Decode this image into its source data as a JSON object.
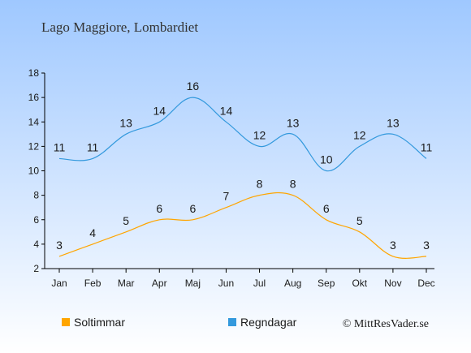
{
  "chart_data": {
    "type": "line",
    "title": "Lago Maggiore, Lombardiet",
    "categories": [
      "Jan",
      "Feb",
      "Mar",
      "Apr",
      "Maj",
      "Jun",
      "Jul",
      "Aug",
      "Sep",
      "Okt",
      "Nov",
      "Dec"
    ],
    "series": [
      {
        "name": "Soltimmar",
        "values": [
          3,
          4,
          5,
          6,
          6,
          7,
          8,
          8,
          6,
          5,
          3,
          3
        ],
        "color": "#ffa500"
      },
      {
        "name": "Regndagar",
        "values": [
          11,
          11,
          13,
          14,
          16,
          14,
          12,
          13,
          10,
          12,
          13,
          11
        ],
        "color": "#3399dd"
      }
    ],
    "yticks": [
      2,
      4,
      6,
      8,
      10,
      12,
      14,
      16,
      18
    ],
    "ylim": [
      2,
      18
    ],
    "grid": false,
    "legend": "bottom-left"
  },
  "credit": "© MittResVader.se",
  "colors": {
    "background_top": "#9fc8ff",
    "background_bottom": "#ffffff",
    "axis": "#000000"
  }
}
